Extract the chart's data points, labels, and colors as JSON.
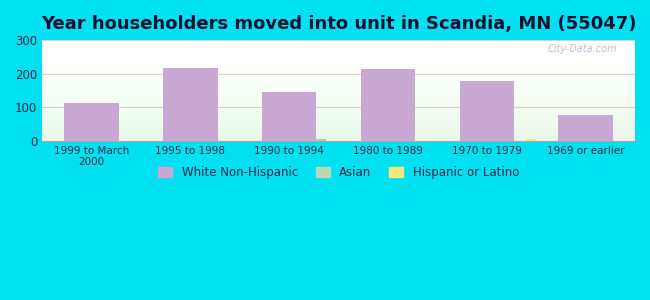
{
  "title": "Year householders moved into unit in Scandia, MN (55047)",
  "categories": [
    "1999 to March\n2000",
    "1995 to 1998",
    "1990 to 1994",
    "1980 to 1989",
    "1970 to 1979",
    "1969 or earlier"
  ],
  "white_non_hispanic": [
    113,
    218,
    147,
    213,
    178,
    78
  ],
  "asian": [
    0,
    0,
    5,
    0,
    0,
    0
  ],
  "hispanic_or_latino": [
    0,
    0,
    0,
    0,
    5,
    0
  ],
  "bar_color_white": "#c9a8d4",
  "bar_color_asian": "#a8cfa8",
  "bar_color_hispanic": "#f0e87a",
  "background_outer": "#00e0f0",
  "ylim": [
    0,
    300
  ],
  "yticks": [
    0,
    100,
    200,
    300
  ],
  "title_fontsize": 13,
  "legend_color_white": "#c9a8d4",
  "legend_color_asian": "#b8d8b8",
  "legend_color_hispanic": "#f0e87a",
  "watermark": "City-Data.com",
  "bar_width": 0.55
}
